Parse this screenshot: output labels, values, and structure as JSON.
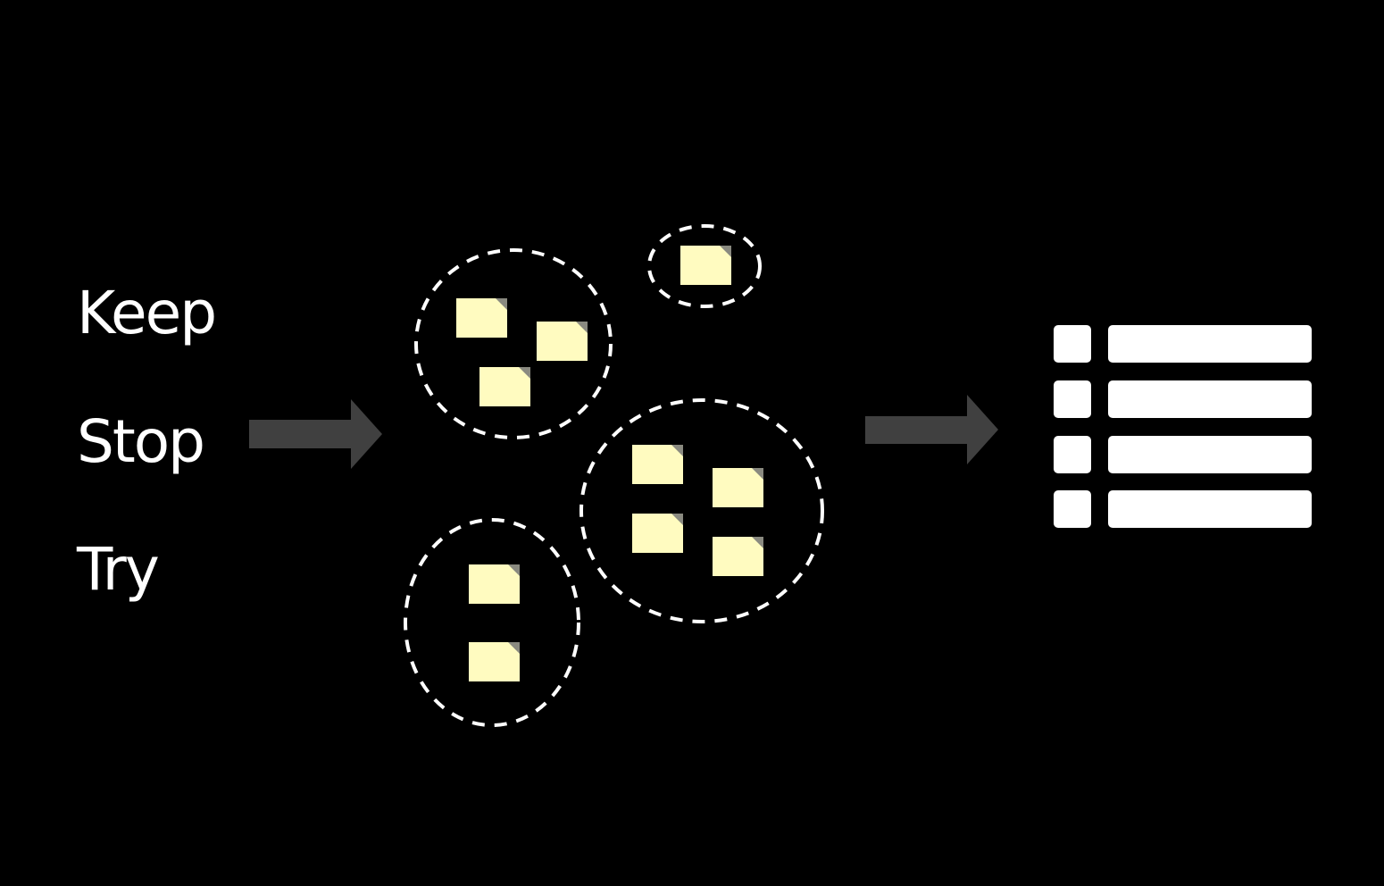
{
  "labels": {
    "keep": "Keep",
    "stop": "Stop",
    "try": "Try"
  },
  "colors": {
    "background": "#000000",
    "text": "#ffffff",
    "arrow": "#404040",
    "sticky_note": "#fffbc0",
    "sticky_note_fold": "#8a8a80",
    "group_outline": "#ffffff",
    "list_block": "#ffffff"
  },
  "groups": [
    {
      "name": "group-top-left",
      "note_count": 3
    },
    {
      "name": "group-top-small",
      "note_count": 1
    },
    {
      "name": "group-right",
      "note_count": 4
    },
    {
      "name": "group-bottom-left",
      "note_count": 2
    }
  ],
  "result_list": {
    "row_count": 4
  }
}
